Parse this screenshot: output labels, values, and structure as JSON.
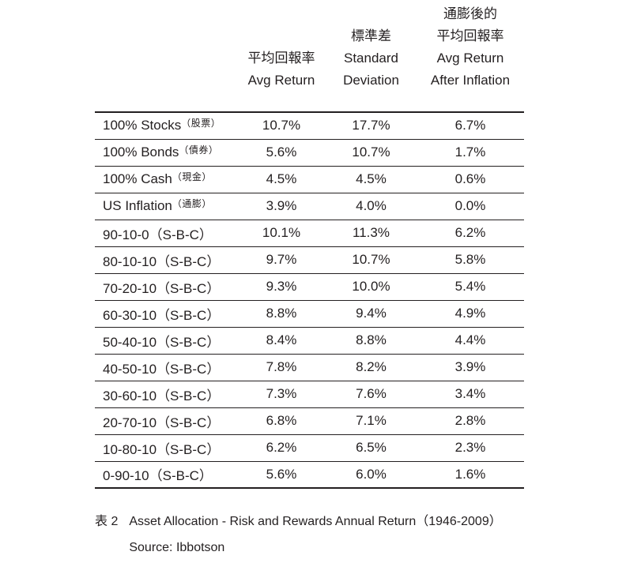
{
  "colors": {
    "background": "#ffffff",
    "text": "#231f20",
    "border": "#231f20"
  },
  "table": {
    "columns": [
      {
        "id": "portfolio",
        "lines": []
      },
      {
        "id": "avg_return",
        "lines": [
          "平均回報率",
          "Avg Return"
        ]
      },
      {
        "id": "std_deviation",
        "lines": [
          "標準差",
          "Standard",
          "Deviation"
        ]
      },
      {
        "id": "avg_return_after_inflation",
        "lines": [
          "通膨後的",
          "平均回報率",
          "Avg Return",
          "After Inflation"
        ]
      }
    ],
    "rows": [
      {
        "label": "100% Stocks",
        "note": "（股票）",
        "note_small": true,
        "avg_return": "10.7%",
        "std_dev": "17.7%",
        "after_inflation": "6.7%"
      },
      {
        "label": "100% Bonds",
        "note": "（債券）",
        "note_small": true,
        "avg_return": "5.6%",
        "std_dev": "10.7%",
        "after_inflation": "1.7%"
      },
      {
        "label": "100% Cash",
        "note": "（現金）",
        "note_small": true,
        "avg_return": "4.5%",
        "std_dev": "4.5%",
        "after_inflation": "0.6%"
      },
      {
        "label": "US Inflation",
        "note": "（通膨）",
        "note_small": true,
        "avg_return": "3.9%",
        "std_dev": "4.0%",
        "after_inflation": "0.0%"
      },
      {
        "label": "90-10-0",
        "note": "（S-B-C）",
        "note_small": false,
        "avg_return": "10.1%",
        "std_dev": "11.3%",
        "after_inflation": "6.2%"
      },
      {
        "label": "80-10-10",
        "note": "（S-B-C）",
        "note_small": false,
        "avg_return": "9.7%",
        "std_dev": "10.7%",
        "after_inflation": "5.8%"
      },
      {
        "label": "70-20-10",
        "note": "（S-B-C）",
        "note_small": false,
        "avg_return": "9.3%",
        "std_dev": "10.0%",
        "after_inflation": "5.4%"
      },
      {
        "label": "60-30-10",
        "note": "（S-B-C）",
        "note_small": false,
        "avg_return": "8.8%",
        "std_dev": "9.4%",
        "after_inflation": "4.9%"
      },
      {
        "label": "50-40-10",
        "note": "（S-B-C）",
        "note_small": false,
        "avg_return": "8.4%",
        "std_dev": "8.8%",
        "after_inflation": "4.4%"
      },
      {
        "label": "40-50-10",
        "note": "（S-B-C）",
        "note_small": false,
        "avg_return": "7.8%",
        "std_dev": "8.2%",
        "after_inflation": "3.9%"
      },
      {
        "label": "30-60-10",
        "note": "（S-B-C）",
        "note_small": false,
        "avg_return": "7.3%",
        "std_dev": "7.6%",
        "after_inflation": "3.4%"
      },
      {
        "label": "20-70-10",
        "note": "（S-B-C）",
        "note_small": false,
        "avg_return": "6.8%",
        "std_dev": "7.1%",
        "after_inflation": "2.8%"
      },
      {
        "label": "10-80-10",
        "note": "（S-B-C）",
        "note_small": false,
        "avg_return": "6.2%",
        "std_dev": "6.5%",
        "after_inflation": "2.3%"
      },
      {
        "label": "0-90-10",
        "note": "（S-B-C）",
        "note_small": false,
        "avg_return": "5.6%",
        "std_dev": "6.0%",
        "after_inflation": "1.6%"
      }
    ]
  },
  "caption": {
    "tag": "表 2",
    "title": "Asset Allocation - Risk and Rewards Annual Return（1946-2009）",
    "source": "Source: Ibbotson"
  }
}
